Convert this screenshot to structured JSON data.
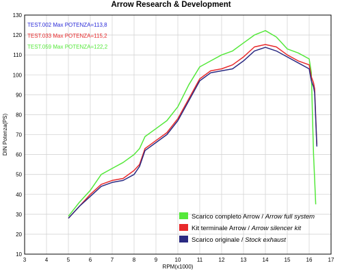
{
  "chart_data": {
    "type": "line",
    "title": "Arrow Research & Development",
    "xlabel": "RPM(x1000)",
    "ylabel": "DIN Potenza(PS)",
    "xlim": [
      3,
      17
    ],
    "ylim": [
      10,
      130
    ],
    "xticks": [
      3,
      4,
      5,
      6,
      7,
      8,
      9,
      10,
      11,
      12,
      13,
      14,
      15,
      16,
      17
    ],
    "yticks": [
      10,
      20,
      30,
      40,
      50,
      60,
      70,
      80,
      90,
      100,
      110,
      120,
      130
    ],
    "grid": true,
    "legend_position": "bottom-right",
    "annotations": [
      {
        "text": "TEST.002  Max POTENZA=113,8",
        "color": "#2a2ad8"
      },
      {
        "text": "TEST.033  Max POTENZA=115,2",
        "color": "#e8292b"
      },
      {
        "text": "TEST.059  Max POTENZA=122,2",
        "color": "#54e83a"
      }
    ],
    "legend": [
      {
        "label_normal": "Scarico completo Arrow / ",
        "label_italic": "Arrow full system",
        "color": "#54e83a"
      },
      {
        "label_normal": "Kit terminale Arrow / ",
        "label_italic": "Arrow silencer kit",
        "color": "#e8292b"
      },
      {
        "label_normal": "Scarico originale / ",
        "label_italic": "Stock exhaust",
        "color": "#2a2a82"
      }
    ],
    "series": [
      {
        "color": "#54e83a",
        "x": [
          5.0,
          5.5,
          6.0,
          6.5,
          7.0,
          7.5,
          8.0,
          8.25,
          8.5,
          9.0,
          9.5,
          10.0,
          10.5,
          11.0,
          11.5,
          12.0,
          12.5,
          13.0,
          13.5,
          14.0,
          14.5,
          15.0,
          15.5,
          16.0,
          16.1,
          16.15,
          16.2,
          16.3
        ],
        "y": [
          29,
          36,
          42,
          50,
          53,
          56,
          60,
          63,
          69,
          73,
          77,
          84,
          95,
          104,
          107,
          110,
          112,
          116,
          120,
          122.2,
          119,
          113,
          111,
          108,
          101,
          80,
          60,
          35
        ]
      },
      {
        "color": "#e8292b",
        "x": [
          5.0,
          5.5,
          6.0,
          6.5,
          7.0,
          7.5,
          8.0,
          8.25,
          8.5,
          9.0,
          9.5,
          10.0,
          10.5,
          11.0,
          11.5,
          12.0,
          12.5,
          13.0,
          13.5,
          14.0,
          14.5,
          15.0,
          15.5,
          16.0,
          16.1,
          16.2,
          16.25,
          16.35
        ],
        "y": [
          28,
          34,
          40,
          45,
          47,
          48,
          52,
          55,
          63,
          67,
          71,
          78,
          88,
          98,
          102,
          103,
          105,
          109,
          114,
          115.2,
          114,
          110,
          107,
          105,
          99,
          96,
          93,
          65
        ]
      },
      {
        "color": "#2a2a82",
        "x": [
          5.0,
          5.5,
          6.0,
          6.5,
          7.0,
          7.5,
          8.0,
          8.25,
          8.5,
          9.0,
          9.5,
          10.0,
          10.5,
          11.0,
          11.5,
          12.0,
          12.5,
          13.0,
          13.5,
          14.0,
          14.5,
          15.0,
          15.5,
          16.0,
          16.1,
          16.2,
          16.25,
          16.35
        ],
        "y": [
          28,
          34,
          39,
          44,
          46,
          47,
          50,
          54,
          62,
          66,
          70,
          77,
          87,
          97,
          101,
          102,
          103,
          107,
          112,
          113.8,
          112,
          109,
          106,
          103,
          97,
          94,
          91,
          64
        ]
      }
    ]
  }
}
